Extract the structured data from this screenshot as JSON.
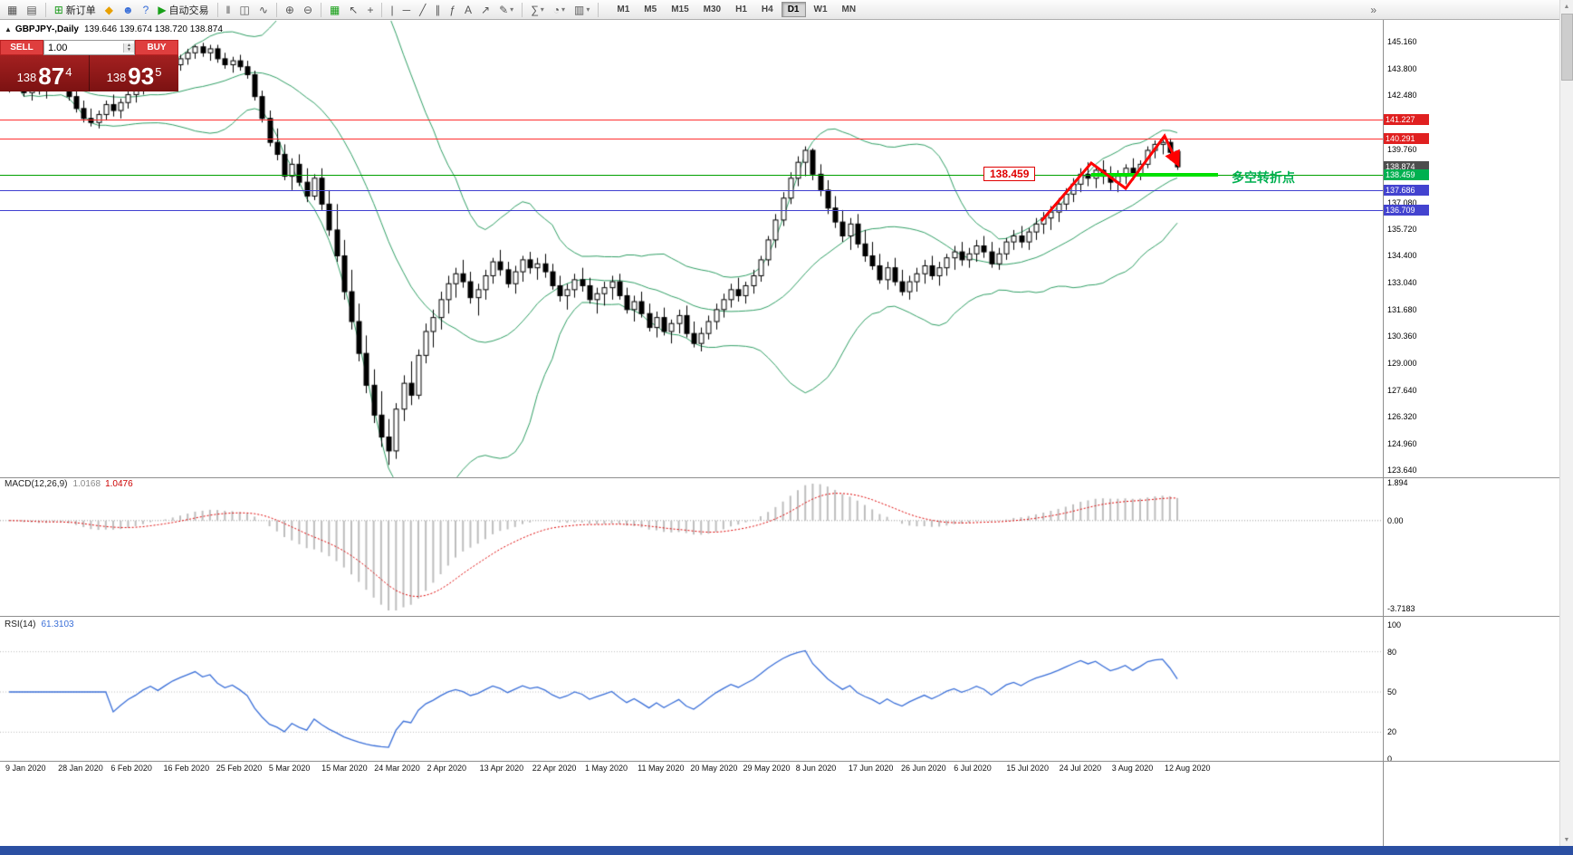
{
  "window": {
    "taskbar_color": "#2b4fa2"
  },
  "colors": {
    "band": "#2f9e64",
    "candle_up": "#ffffff",
    "candle_down": "#000000",
    "candle_border": "#000000",
    "macd_hist": "#bdbdbd",
    "macd_signal": "#dd0000",
    "rsi_line": "#3a6fd8"
  },
  "toolbar": {
    "groups": [
      {
        "name": "chart-group",
        "items": [
          {
            "name": "new-chart-icon",
            "glyph": "▦"
          },
          {
            "name": "chart-profiles-icon",
            "glyph": "▤"
          }
        ]
      },
      {
        "name": "trade-group",
        "items": [
          {
            "name": "new-order-button",
            "glyph": "⊞",
            "glyph_color": "#1a9a1a",
            "label": "新订单"
          },
          {
            "name": "mql5-icon",
            "glyph": "◆",
            "glyph_color": "#e8a000"
          },
          {
            "name": "community-icon",
            "glyph": "☻",
            "glyph_color": "#3a6fd8"
          },
          {
            "name": "help-icon",
            "glyph": "?",
            "glyph_color": "#3a6fd8"
          },
          {
            "name": "autotrading-button",
            "glyph": "▶",
            "glyph_color": "#18a018",
            "label": "自动交易"
          }
        ]
      },
      {
        "name": "chart-type-group",
        "items": [
          {
            "name": "bar-chart-icon",
            "glyph": "‖"
          },
          {
            "name": "candlestick-chart-icon",
            "glyph": "◫"
          },
          {
            "name": "line-chart-icon",
            "glyph": "∿"
          }
        ]
      },
      {
        "name": "zoom-group",
        "items": [
          {
            "name": "zoom-in-icon",
            "glyph": "⊕"
          },
          {
            "name": "zoom-out-icon",
            "glyph": "⊖"
          }
        ]
      },
      {
        "name": "arrange-group",
        "items": [
          {
            "name": "tile-windows-icon",
            "glyph": "▦",
            "glyph_color": "#18a018"
          },
          {
            "name": "cursor-icon",
            "glyph": "↖"
          },
          {
            "name": "crosshair-icon",
            "glyph": "+"
          }
        ]
      },
      {
        "name": "objects-group",
        "items": [
          {
            "name": "vertical-line-icon",
            "glyph": "|"
          },
          {
            "name": "horizontal-line-icon",
            "glyph": "─"
          },
          {
            "name": "trendline-icon",
            "glyph": "╱"
          },
          {
            "name": "channel-icon",
            "glyph": "∥"
          },
          {
            "name": "fibonacci-icon",
            "glyph": "ƒ"
          },
          {
            "name": "text-icon",
            "glyph": "A"
          },
          {
            "name": "arrow-tool-icon",
            "glyph": "↗"
          },
          {
            "name": "shapes-icon",
            "glyph": "✎",
            "dropdown": true
          }
        ]
      },
      {
        "name": "panels-group",
        "items": [
          {
            "name": "indicators-icon",
            "glyph": "∑",
            "dropdown": true
          },
          {
            "name": "periods-icon",
            "glyph": "◔",
            "dropdown": true
          },
          {
            "name": "templates-icon",
            "glyph": "▥",
            "dropdown": true
          }
        ]
      }
    ],
    "timeframes": [
      "M1",
      "M5",
      "M15",
      "M30",
      "H1",
      "H4",
      "D1",
      "W1",
      "MN"
    ],
    "active_timeframe": "D1",
    "overflow_icon": "»"
  },
  "chart": {
    "symbol_title": "GBPJPY-,Daily",
    "ohlc": "139.646 139.674 138.720 138.874",
    "trade_panel": {
      "sell_label": "SELL",
      "buy_label": "BUY",
      "volume": "1.00",
      "sell_price_prefix": "138",
      "sell_price_big": "87",
      "sell_price_sup": "4",
      "buy_price_prefix": "138",
      "buy_price_big": "93",
      "buy_price_sup": "5"
    },
    "price_axis": [
      "145.160",
      "143.800",
      "142.480",
      "139.760",
      "137.080",
      "135.720",
      "134.400",
      "133.040",
      "131.680",
      "130.360",
      "129.000",
      "127.640",
      "126.320",
      "124.960",
      "123.640"
    ],
    "price_tags": [
      {
        "name": "resistance-tag-1",
        "text": "141.227",
        "value": 141.227,
        "color": "#e02020"
      },
      {
        "name": "resistance-tag-2",
        "text": "140.291",
        "value": 140.291,
        "color": "#e02020"
      },
      {
        "name": "current-price-tag",
        "text": "138.874",
        "value": 138.874,
        "color": "#4d4d4d"
      },
      {
        "name": "support-tag",
        "text": "138.459",
        "value": 138.459,
        "color": "#00b050"
      },
      {
        "name": "level-tag-1",
        "text": "137.686",
        "value": 137.686,
        "color": "#4343cf"
      },
      {
        "name": "level-tag-2",
        "text": "136.709",
        "value": 136.709,
        "color": "#4343cf"
      }
    ],
    "hlines": [
      {
        "value": 141.227,
        "color": "#ff3030"
      },
      {
        "value": 140.291,
        "color": "#ff3030"
      },
      {
        "value": 138.459,
        "color": "#00a000"
      },
      {
        "value": 137.686,
        "color": "#4040d0"
      },
      {
        "value": 136.709,
        "color": "#4040d0"
      }
    ],
    "annotations": {
      "price_label": "138.459",
      "pivot_text": "多空转折点",
      "pivot_text_color": "#00b050",
      "highlight_color": "#00e000",
      "arrow_color": "#ff0000"
    },
    "dates": [
      "9 Jan 2020",
      "28 Jan 2020",
      "6 Feb 2020",
      "16 Feb 2020",
      "25 Feb 2020",
      "5 Mar 2020",
      "15 Mar 2020",
      "24 Mar 2020",
      "2 Apr 2020",
      "13 Apr 2020",
      "22 Apr 2020",
      "1 May 2020",
      "11 May 2020",
      "20 May 2020",
      "29 May 2020",
      "8 Jun 2020",
      "17 Jun 2020",
      "26 Jun 2020",
      "6 Jul 2020",
      "15 Jul 2020",
      "24 Jul 2020",
      "3 Aug 2020",
      "12 Aug 2020"
    ]
  },
  "macd": {
    "label": "MACD(12,26,9)",
    "value_main": "1.0168",
    "value_signal": "1.0476",
    "axis_top": "1.894",
    "axis_zero": "0.00",
    "axis_bottom": "-3.7183"
  },
  "rsi": {
    "label": "RSI(14)",
    "value": "61.3103",
    "axis": [
      "100",
      "80",
      "50",
      "20",
      "0"
    ],
    "levels": [
      80,
      50,
      20
    ]
  },
  "chart_data": {
    "type": "candlestick",
    "symbol": "GBPJPY-",
    "timeframe": "Daily",
    "title": "GBPJPY-,Daily",
    "ohlc_current": {
      "open": 139.646,
      "high": 139.674,
      "low": 138.72,
      "close": 138.874
    },
    "price_range": [
      123.64,
      145.16
    ],
    "overlays": [
      "Bollinger Bands (green)",
      "MACD(12,26,9)",
      "RSI(14)"
    ],
    "key_levels": [
      141.227,
      140.291,
      138.459,
      137.686,
      136.709
    ],
    "candles": [
      [
        143.0,
        143.5,
        142.6,
        143.3
      ],
      [
        143.3,
        143.7,
        142.9,
        143.1
      ],
      [
        143.1,
        143.4,
        142.4,
        142.6
      ],
      [
        142.6,
        143.1,
        142.2,
        142.9
      ],
      [
        142.9,
        143.3,
        142.5,
        142.7
      ],
      [
        142.7,
        143.2,
        142.3,
        143.0
      ],
      [
        143.0,
        143.6,
        142.7,
        143.4
      ],
      [
        143.4,
        143.7,
        142.8,
        143.0
      ],
      [
        143.0,
        143.3,
        142.2,
        142.4
      ],
      [
        142.4,
        142.8,
        141.6,
        141.8
      ],
      [
        141.8,
        142.2,
        141.1,
        141.3
      ],
      [
        141.3,
        141.8,
        140.9,
        141.1
      ],
      [
        141.1,
        141.7,
        140.8,
        141.5
      ],
      [
        141.5,
        142.2,
        141.2,
        142.0
      ],
      [
        142.0,
        142.5,
        141.4,
        141.7
      ],
      [
        141.7,
        142.3,
        141.3,
        142.1
      ],
      [
        142.1,
        142.7,
        141.8,
        142.5
      ],
      [
        142.5,
        143.0,
        142.1,
        142.8
      ],
      [
        142.8,
        143.4,
        142.5,
        143.2
      ],
      [
        143.2,
        143.7,
        142.8,
        143.5
      ],
      [
        143.5,
        143.9,
        143.0,
        143.2
      ],
      [
        143.2,
        143.8,
        142.9,
        143.6
      ],
      [
        143.6,
        144.2,
        143.3,
        144.0
      ],
      [
        144.0,
        144.5,
        143.7,
        144.3
      ],
      [
        144.3,
        144.8,
        144.0,
        144.6
      ],
      [
        144.6,
        145.0,
        144.3,
        144.9
      ],
      [
        144.9,
        145.1,
        144.4,
        144.6
      ],
      [
        144.6,
        145.0,
        144.2,
        144.8
      ],
      [
        144.8,
        145.0,
        144.1,
        144.3
      ],
      [
        144.3,
        144.6,
        143.8,
        144.0
      ],
      [
        144.0,
        144.4,
        143.6,
        144.2
      ],
      [
        144.2,
        144.5,
        143.7,
        143.9
      ],
      [
        143.9,
        144.2,
        143.3,
        143.5
      ],
      [
        143.5,
        143.7,
        142.2,
        142.4
      ],
      [
        142.4,
        142.7,
        141.1,
        141.3
      ],
      [
        141.3,
        141.7,
        139.9,
        140.1
      ],
      [
        140.1,
        140.8,
        139.2,
        139.5
      ],
      [
        139.5,
        140.0,
        138.2,
        138.4
      ],
      [
        138.4,
        139.3,
        137.7,
        139.0
      ],
      [
        139.0,
        139.5,
        137.9,
        138.1
      ],
      [
        138.1,
        138.8,
        137.1,
        137.4
      ],
      [
        137.4,
        138.5,
        137.2,
        138.3
      ],
      [
        138.3,
        138.8,
        136.7,
        137.0
      ],
      [
        137.0,
        137.7,
        135.4,
        135.7
      ],
      [
        135.7,
        137.0,
        134.1,
        134.4
      ],
      [
        134.4,
        135.2,
        132.2,
        132.6
      ],
      [
        132.6,
        133.7,
        130.7,
        131.1
      ],
      [
        131.1,
        132.0,
        129.1,
        129.5
      ],
      [
        129.5,
        130.4,
        127.5,
        127.9
      ],
      [
        127.9,
        128.7,
        126.0,
        126.4
      ],
      [
        126.4,
        127.6,
        124.8,
        125.3
      ],
      [
        125.3,
        126.2,
        123.9,
        124.6
      ],
      [
        124.6,
        127.0,
        124.2,
        126.7
      ],
      [
        126.7,
        128.4,
        126.1,
        128.0
      ],
      [
        128.0,
        129.1,
        126.9,
        127.4
      ],
      [
        127.4,
        129.7,
        127.2,
        129.4
      ],
      [
        129.4,
        131.0,
        129.0,
        130.6
      ],
      [
        130.6,
        131.7,
        129.8,
        131.3
      ],
      [
        131.3,
        132.6,
        130.7,
        132.2
      ],
      [
        132.2,
        133.4,
        131.5,
        133.0
      ],
      [
        133.0,
        133.8,
        132.3,
        133.5
      ],
      [
        133.5,
        134.2,
        132.8,
        133.1
      ],
      [
        133.1,
        133.6,
        132.0,
        132.3
      ],
      [
        132.3,
        133.0,
        131.4,
        132.7
      ],
      [
        132.7,
        133.7,
        132.2,
        133.4
      ],
      [
        133.4,
        134.3,
        133.0,
        134.1
      ],
      [
        134.1,
        134.7,
        133.4,
        133.7
      ],
      [
        133.7,
        134.1,
        132.8,
        133.0
      ],
      [
        133.0,
        133.9,
        132.5,
        133.6
      ],
      [
        133.6,
        134.4,
        133.1,
        134.2
      ],
      [
        134.2,
        134.6,
        133.5,
        133.8
      ],
      [
        133.8,
        134.3,
        133.2,
        134.0
      ],
      [
        134.0,
        134.5,
        133.3,
        133.6
      ],
      [
        133.6,
        134.0,
        132.7,
        132.9
      ],
      [
        132.9,
        133.4,
        132.1,
        132.4
      ],
      [
        132.4,
        133.0,
        131.7,
        132.7
      ],
      [
        132.7,
        133.5,
        132.3,
        133.2
      ],
      [
        133.2,
        133.8,
        132.6,
        132.9
      ],
      [
        132.9,
        133.3,
        132.0,
        132.2
      ],
      [
        132.2,
        132.8,
        131.5,
        132.5
      ],
      [
        132.5,
        133.1,
        131.9,
        132.8
      ],
      [
        132.8,
        133.4,
        132.2,
        133.1
      ],
      [
        133.1,
        133.5,
        132.2,
        132.4
      ],
      [
        132.4,
        132.8,
        131.5,
        131.7
      ],
      [
        131.7,
        132.4,
        131.1,
        132.1
      ],
      [
        132.1,
        132.6,
        131.3,
        131.5
      ],
      [
        131.5,
        132.0,
        130.6,
        130.8
      ],
      [
        130.8,
        131.6,
        130.3,
        131.3
      ],
      [
        131.3,
        131.8,
        130.4,
        130.6
      ],
      [
        130.6,
        131.2,
        130.0,
        131.0
      ],
      [
        131.0,
        131.7,
        130.5,
        131.4
      ],
      [
        131.4,
        131.9,
        130.3,
        130.5
      ],
      [
        130.5,
        131.1,
        129.8,
        130.0
      ],
      [
        130.0,
        130.8,
        129.6,
        130.5
      ],
      [
        130.5,
        131.4,
        130.2,
        131.1
      ],
      [
        131.1,
        132.0,
        130.7,
        131.7
      ],
      [
        131.7,
        132.5,
        131.3,
        132.2
      ],
      [
        132.2,
        133.0,
        131.8,
        132.7
      ],
      [
        132.7,
        133.3,
        132.1,
        132.4
      ],
      [
        132.4,
        133.1,
        132.0,
        132.9
      ],
      [
        132.9,
        133.7,
        132.5,
        133.4
      ],
      [
        133.4,
        134.4,
        133.1,
        134.2
      ],
      [
        134.2,
        135.4,
        133.9,
        135.2
      ],
      [
        135.2,
        136.5,
        134.8,
        136.2
      ],
      [
        136.2,
        137.6,
        135.9,
        137.3
      ],
      [
        137.3,
        138.6,
        137.0,
        138.3
      ],
      [
        138.3,
        139.4,
        137.9,
        139.1
      ],
      [
        139.1,
        139.9,
        138.4,
        139.7
      ],
      [
        139.7,
        139.8,
        138.2,
        138.5
      ],
      [
        138.5,
        139.0,
        137.4,
        137.7
      ],
      [
        137.7,
        138.2,
        136.5,
        136.8
      ],
      [
        136.8,
        137.4,
        135.8,
        136.1
      ],
      [
        136.1,
        136.7,
        135.1,
        135.4
      ],
      [
        135.4,
        136.3,
        134.7,
        136.0
      ],
      [
        136.0,
        136.5,
        134.8,
        135.0
      ],
      [
        135.0,
        135.7,
        134.1,
        134.4
      ],
      [
        134.4,
        135.1,
        133.7,
        133.9
      ],
      [
        133.9,
        134.5,
        133.0,
        133.2
      ],
      [
        133.2,
        134.1,
        132.7,
        133.8
      ],
      [
        133.8,
        134.3,
        132.9,
        133.1
      ],
      [
        133.1,
        133.7,
        132.4,
        132.6
      ],
      [
        132.6,
        133.4,
        132.2,
        133.1
      ],
      [
        133.1,
        133.8,
        132.6,
        133.5
      ],
      [
        133.5,
        134.2,
        133.0,
        133.9
      ],
      [
        133.9,
        134.4,
        133.2,
        133.4
      ],
      [
        133.4,
        134.1,
        132.9,
        133.8
      ],
      [
        133.8,
        134.5,
        133.4,
        134.3
      ],
      [
        134.3,
        134.9,
        133.7,
        134.6
      ],
      [
        134.6,
        135.1,
        133.9,
        134.2
      ],
      [
        134.2,
        134.8,
        133.8,
        134.5
      ],
      [
        134.5,
        135.2,
        134.1,
        134.9
      ],
      [
        134.9,
        135.4,
        134.3,
        134.6
      ],
      [
        134.6,
        135.1,
        133.8,
        134.0
      ],
      [
        134.0,
        134.8,
        133.7,
        134.5
      ],
      [
        134.5,
        135.3,
        134.2,
        135.1
      ],
      [
        135.1,
        135.7,
        134.7,
        135.4
      ],
      [
        135.4,
        135.9,
        134.8,
        135.1
      ],
      [
        135.1,
        135.8,
        134.7,
        135.6
      ],
      [
        135.6,
        136.3,
        135.2,
        136.0
      ],
      [
        136.0,
        136.6,
        135.5,
        136.3
      ],
      [
        136.3,
        136.9,
        135.7,
        136.6
      ],
      [
        136.6,
        137.3,
        136.1,
        137.0
      ],
      [
        137.0,
        137.8,
        136.7,
        137.5
      ],
      [
        137.5,
        138.3,
        137.1,
        138.0
      ],
      [
        138.0,
        138.8,
        137.6,
        138.5
      ],
      [
        138.5,
        139.1,
        137.9,
        138.3
      ],
      [
        138.3,
        138.9,
        137.8,
        138.7
      ],
      [
        138.7,
        139.2,
        138.0,
        138.4
      ],
      [
        138.4,
        138.9,
        137.7,
        138.1
      ],
      [
        138.1,
        138.7,
        137.6,
        138.4
      ],
      [
        138.4,
        139.0,
        138.0,
        138.8
      ],
      [
        138.8,
        139.3,
        138.2,
        138.5
      ],
      [
        138.5,
        139.2,
        138.2,
        139.0
      ],
      [
        139.0,
        139.9,
        138.8,
        139.7
      ],
      [
        139.7,
        140.2,
        139.3,
        140.0
      ],
      [
        140.0,
        140.35,
        139.5,
        140.1
      ],
      [
        140.1,
        140.3,
        139.2,
        139.6
      ],
      [
        139.646,
        139.674,
        138.72,
        138.874
      ]
    ]
  }
}
